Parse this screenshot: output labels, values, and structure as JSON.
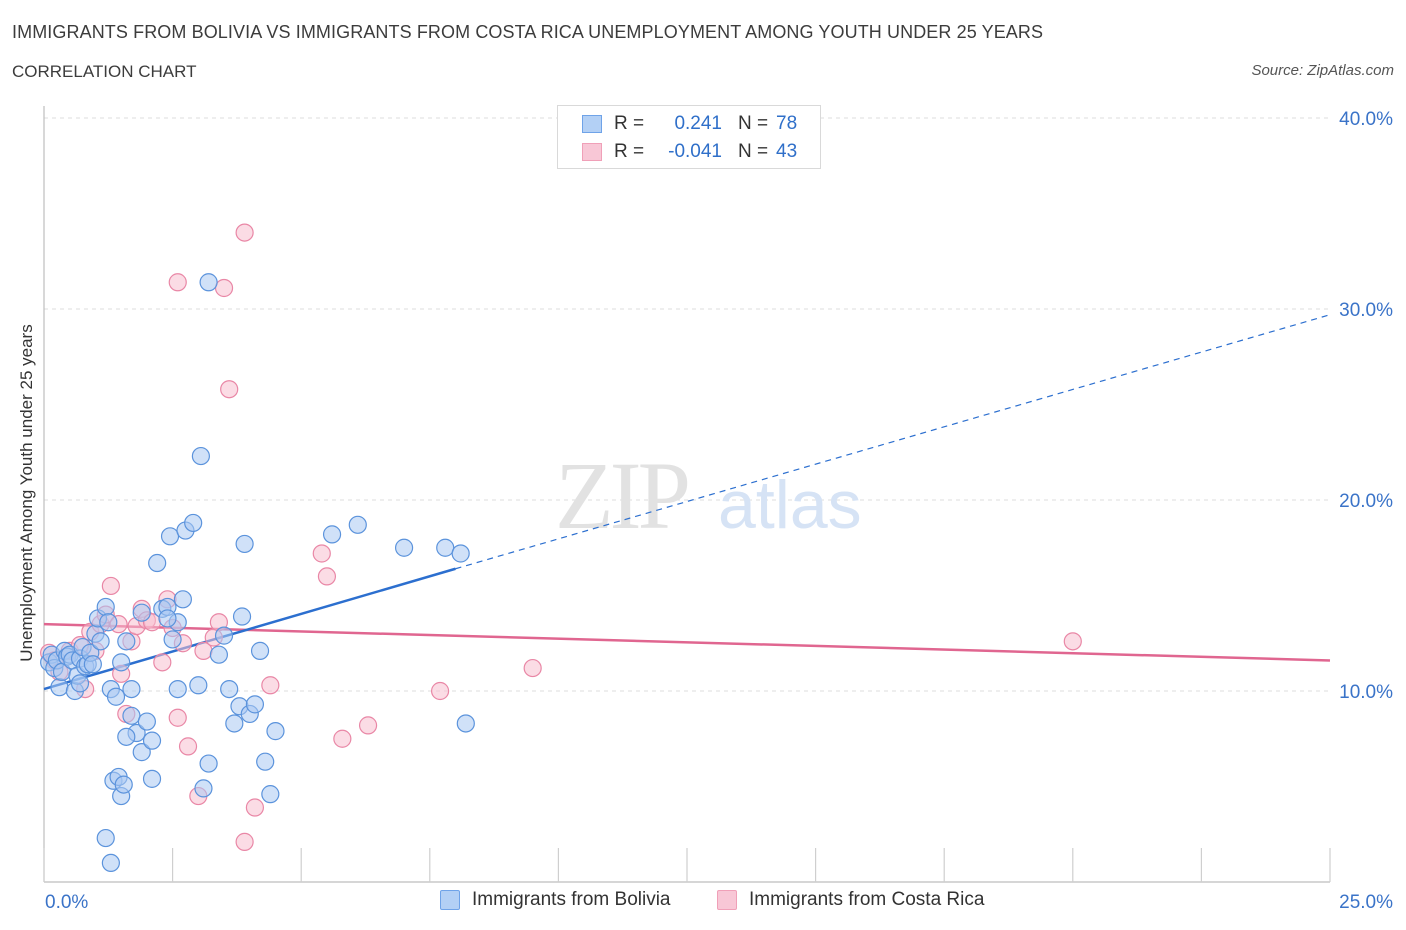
{
  "header": {
    "title": "IMMIGRANTS FROM BOLIVIA VS IMMIGRANTS FROM COSTA RICA UNEMPLOYMENT AMONG YOUTH UNDER 25 YEARS",
    "subtitle": "CORRELATION CHART",
    "source": "Source: ZipAtlas.com"
  },
  "watermark": {
    "zip": "ZIP",
    "atlas": "atlas"
  },
  "stats_legend": {
    "rows": [
      {
        "r_label": "R =",
        "r_value": "0.241",
        "n_label": "N =",
        "n_value": "78",
        "color": "#6fa3e8"
      },
      {
        "r_label": "R =",
        "r_value": "-0.041",
        "n_label": "N =",
        "n_value": "43",
        "color": "#f0a0b8"
      }
    ]
  },
  "colors": {
    "bolivia_fill": "#a9c8f2",
    "bolivia_stroke": "#5b93dc",
    "bolivia_line": "#2c6fcf",
    "costarica_fill": "#f7bfd0",
    "costarica_stroke": "#e987a6",
    "costarica_line": "#e06690",
    "axis_label": "#3a73c8",
    "grid": "#dedede"
  },
  "chart_data": {
    "type": "scatter",
    "title": "IMMIGRANTS FROM BOLIVIA VS IMMIGRANTS FROM COSTA RICA UNEMPLOYMENT AMONG YOUTH UNDER 25 YEARS",
    "xlabel": "",
    "ylabel": "Unemployment Among Youth under 25 years",
    "xlim": [
      0,
      25
    ],
    "ylim": [
      0,
      40
    ],
    "x_tick_labels": [
      "0.0%",
      "25.0%"
    ],
    "y_ticks": [
      10,
      20,
      30,
      40
    ],
    "y_tick_labels": [
      "10.0%",
      "20.0%",
      "30.0%",
      "40.0%"
    ],
    "grid": true,
    "legend_position": "bottom",
    "series": [
      {
        "name": "Immigrants from Bolivia",
        "points": [
          [
            0.1,
            11.5
          ],
          [
            0.15,
            11.9
          ],
          [
            0.2,
            11.2
          ],
          [
            0.25,
            11.6
          ],
          [
            0.3,
            10.2
          ],
          [
            0.35,
            11.0
          ],
          [
            0.4,
            12.1
          ],
          [
            0.45,
            11.8
          ],
          [
            0.5,
            11.9
          ],
          [
            0.55,
            11.6
          ],
          [
            0.6,
            10.0
          ],
          [
            0.65,
            10.8
          ],
          [
            0.7,
            11.7
          ],
          [
            0.75,
            12.3
          ],
          [
            0.8,
            11.3
          ],
          [
            0.85,
            11.4
          ],
          [
            0.9,
            12.0
          ],
          [
            0.95,
            11.4
          ],
          [
            1.0,
            13.0
          ],
          [
            1.05,
            13.8
          ],
          [
            1.1,
            12.6
          ],
          [
            1.2,
            14.4
          ],
          [
            1.25,
            13.6
          ],
          [
            1.3,
            10.1
          ],
          [
            1.4,
            9.7
          ],
          [
            1.5,
            11.5
          ],
          [
            1.6,
            12.6
          ],
          [
            1.7,
            8.7
          ],
          [
            1.8,
            7.8
          ],
          [
            1.9,
            6.8
          ],
          [
            2.0,
            8.4
          ],
          [
            2.1,
            7.4
          ],
          [
            2.2,
            16.7
          ],
          [
            2.3,
            14.3
          ],
          [
            2.4,
            14.4
          ],
          [
            2.45,
            18.1
          ],
          [
            2.5,
            12.7
          ],
          [
            2.6,
            13.6
          ],
          [
            2.7,
            14.8
          ],
          [
            2.75,
            18.4
          ],
          [
            2.9,
            18.8
          ],
          [
            3.0,
            10.3
          ],
          [
            3.05,
            22.3
          ],
          [
            3.1,
            4.9
          ],
          [
            3.2,
            6.2
          ],
          [
            3.4,
            11.9
          ],
          [
            3.5,
            12.9
          ],
          [
            3.6,
            10.1
          ],
          [
            3.7,
            8.3
          ],
          [
            3.8,
            9.2
          ],
          [
            3.85,
            13.9
          ],
          [
            3.9,
            17.7
          ],
          [
            4.0,
            8.8
          ],
          [
            4.1,
            9.3
          ],
          [
            4.2,
            12.1
          ],
          [
            4.3,
            6.3
          ],
          [
            4.4,
            4.6
          ],
          [
            4.5,
            7.9
          ],
          [
            1.2,
            2.3
          ],
          [
            1.3,
            1.0
          ],
          [
            1.35,
            5.3
          ],
          [
            1.45,
            5.5
          ],
          [
            1.5,
            4.5
          ],
          [
            1.55,
            5.1
          ],
          [
            1.6,
            7.6
          ],
          [
            1.7,
            10.1
          ],
          [
            2.1,
            5.4
          ],
          [
            2.4,
            13.8
          ],
          [
            3.2,
            31.4
          ],
          [
            5.6,
            18.2
          ],
          [
            6.1,
            18.7
          ],
          [
            7.0,
            17.5
          ],
          [
            7.8,
            17.5
          ],
          [
            8.1,
            17.2
          ],
          [
            8.2,
            8.3
          ],
          [
            0.7,
            10.4
          ],
          [
            1.9,
            14.1
          ],
          [
            2.6,
            10.1
          ]
        ]
      },
      {
        "name": "Immigrants from Costa Rica",
        "points": [
          [
            0.1,
            12.0
          ],
          [
            0.2,
            11.6
          ],
          [
            0.3,
            11.0
          ],
          [
            0.5,
            12.1
          ],
          [
            0.7,
            12.4
          ],
          [
            0.8,
            10.1
          ],
          [
            0.9,
            13.1
          ],
          [
            1.0,
            12.1
          ],
          [
            1.1,
            13.5
          ],
          [
            1.2,
            14.0
          ],
          [
            1.3,
            15.5
          ],
          [
            1.45,
            13.5
          ],
          [
            1.5,
            10.9
          ],
          [
            1.6,
            8.8
          ],
          [
            1.7,
            12.6
          ],
          [
            1.8,
            13.4
          ],
          [
            1.9,
            14.3
          ],
          [
            2.0,
            13.7
          ],
          [
            2.1,
            13.6
          ],
          [
            2.3,
            11.5
          ],
          [
            2.4,
            14.8
          ],
          [
            2.5,
            13.3
          ],
          [
            2.6,
            8.6
          ],
          [
            2.7,
            12.5
          ],
          [
            2.8,
            7.1
          ],
          [
            3.0,
            4.5
          ],
          [
            3.1,
            12.1
          ],
          [
            3.3,
            12.8
          ],
          [
            3.4,
            13.6
          ],
          [
            3.6,
            25.8
          ],
          [
            3.9,
            34.0
          ],
          [
            3.5,
            31.1
          ],
          [
            2.6,
            31.4
          ],
          [
            3.9,
            2.1
          ],
          [
            4.1,
            3.9
          ],
          [
            4.4,
            10.3
          ],
          [
            5.4,
            17.2
          ],
          [
            5.5,
            16.0
          ],
          [
            5.8,
            7.5
          ],
          [
            6.3,
            8.2
          ],
          [
            7.7,
            10.0
          ],
          [
            9.5,
            11.2
          ],
          [
            20.0,
            12.6
          ]
        ]
      }
    ],
    "trendlines": [
      {
        "series": "Immigrants from Bolivia",
        "solid": [
          [
            0,
            10.1
          ],
          [
            8,
            16.4
          ]
        ],
        "dashed": [
          [
            8,
            16.4
          ],
          [
            25,
            29.7
          ]
        ]
      },
      {
        "series": "Immigrants from Costa Rica",
        "solid": [
          [
            0,
            13.5
          ],
          [
            25,
            11.6
          ]
        ]
      }
    ]
  },
  "bottom_legend": {
    "items": [
      {
        "label": "Immigrants from Bolivia"
      },
      {
        "label": "Immigrants from Costa Rica"
      }
    ]
  }
}
